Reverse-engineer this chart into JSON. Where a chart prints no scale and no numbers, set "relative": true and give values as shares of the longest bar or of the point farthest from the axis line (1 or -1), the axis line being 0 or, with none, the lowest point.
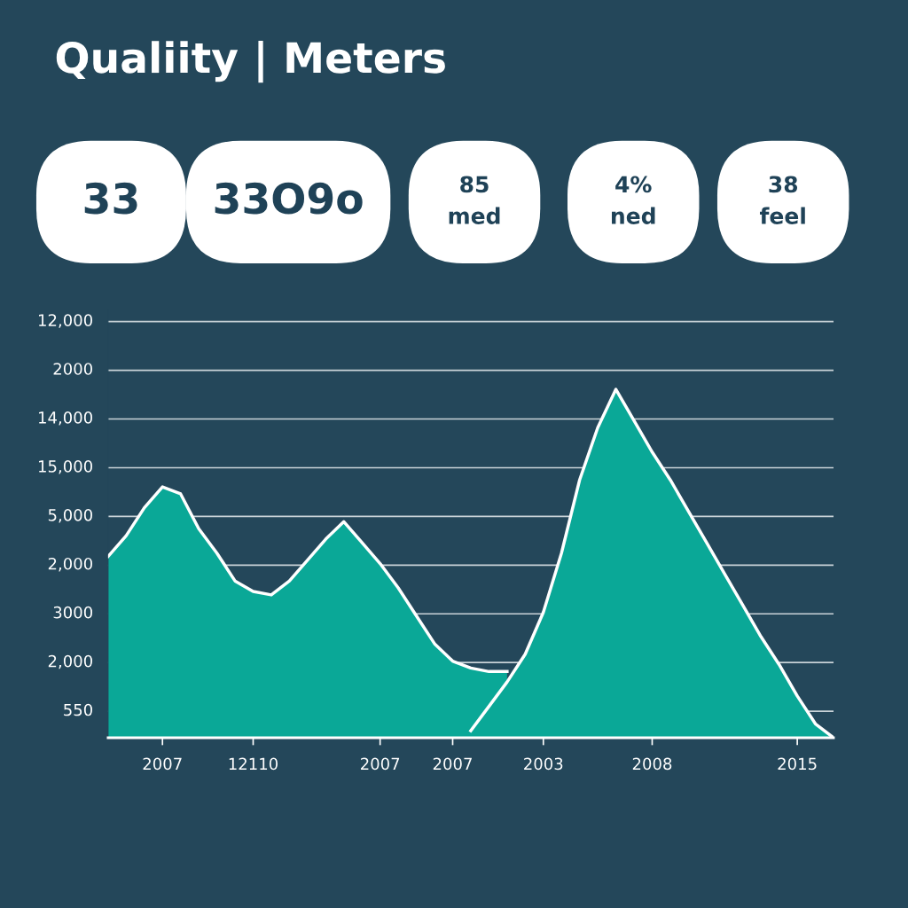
{
  "chart_data": {
    "type": "area",
    "title": "Qualiity | Meters",
    "relative": true,
    "annotations": [
      "33",
      "33O9o",
      "85\nmed",
      "4%\nned",
      "38\nfeel",
      "550",
      "2,000",
      "3000",
      "2,000",
      "5,000",
      "15,000",
      "14,000",
      "2000",
      "12,000"
    ],
    "grid": "y",
    "categories": [
      null,
      null,
      null,
      "2007",
      null,
      null,
      null,
      null,
      "12110",
      null,
      null,
      null,
      null,
      null,
      null,
      "2007",
      null,
      null,
      null,
      "2007",
      null,
      null,
      null,
      null,
      "2003",
      null,
      null,
      null,
      null,
      null,
      "2008",
      null,
      null,
      null,
      null,
      null,
      null,
      null,
      "2015",
      null,
      null
    ],
    "series": [
      {
        "color": "#0aa897",
        "values": [
          0.52,
          0.58,
          0.66,
          0.72,
          0.7,
          0.6,
          0.53,
          0.45,
          0.42,
          0.41,
          0.45,
          0.51,
          0.57,
          0.62,
          0.56,
          0.5,
          0.43,
          0.35,
          0.27,
          0.22,
          0.2,
          0.19,
          0.19,
          null,
          null,
          null,
          null,
          null,
          null,
          null,
          null,
          null,
          null,
          null,
          null,
          null,
          null,
          null,
          null,
          null,
          null
        ]
      },
      {
        "color": "#0aa897",
        "values": [
          null,
          null,
          null,
          null,
          null,
          null,
          null,
          null,
          null,
          null,
          null,
          null,
          null,
          null,
          null,
          null,
          null,
          null,
          null,
          null,
          0.02,
          0.09,
          0.16,
          0.24,
          0.36,
          0.53,
          0.74,
          0.89,
          1.0,
          0.91,
          0.82,
          0.74,
          0.65,
          0.56,
          0.47,
          0.38,
          0.29,
          0.21,
          0.12,
          0.04,
          0
        ]
      }
    ],
    "line_style": "solid"
  }
}
